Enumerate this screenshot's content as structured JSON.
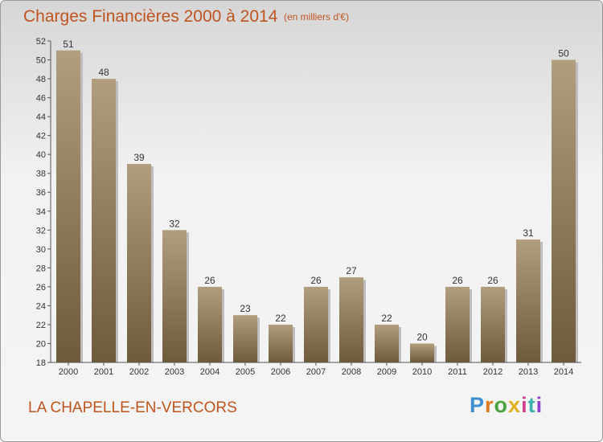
{
  "title": "Charges Financières 2000 à 2014",
  "subtitle": "(en milliers d'€)",
  "town": "LA CHAPELLE-EN-VERCORS",
  "logo": {
    "text": "Proxiti",
    "colors": [
      "#3f8fd0",
      "#e07a20",
      "#4ba33f",
      "#e0b020",
      "#d03f8f",
      "#3fb0b0",
      "#8f3fd0"
    ]
  },
  "chart_data": {
    "type": "bar",
    "categories": [
      "2000",
      "2001",
      "2002",
      "2003",
      "2004",
      "2005",
      "2006",
      "2007",
      "2008",
      "2009",
      "2010",
      "2011",
      "2012",
      "2013",
      "2014"
    ],
    "values": [
      51,
      48,
      39,
      32,
      26,
      23,
      22,
      26,
      27,
      22,
      20,
      26,
      26,
      31,
      50
    ],
    "title": "Charges Financières 2000 à 2014",
    "subtitle": "(en milliers d'€)",
    "ylim": [
      18,
      52
    ],
    "yticks": [
      18,
      20,
      22,
      24,
      26,
      28,
      30,
      32,
      34,
      36,
      38,
      40,
      42,
      44,
      46,
      48,
      50,
      52
    ],
    "grid": false,
    "bar_color": "#8e7a5a"
  }
}
